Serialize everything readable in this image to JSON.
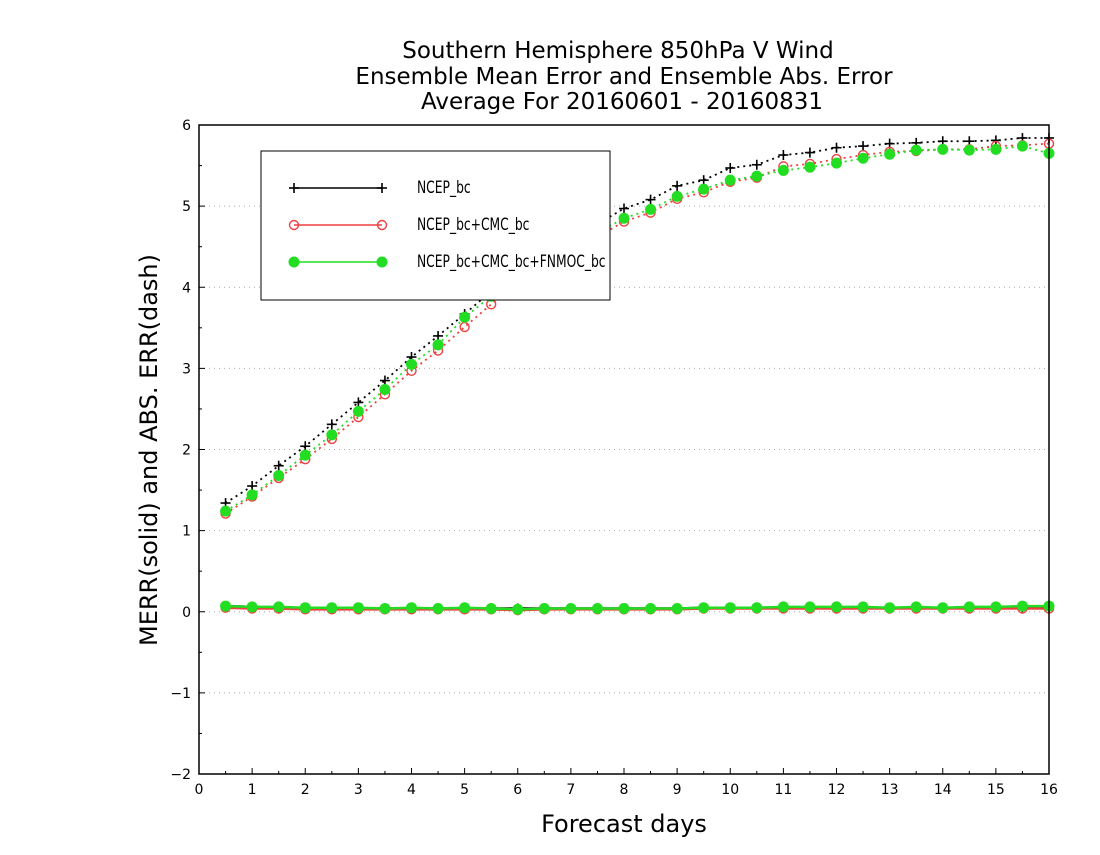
{
  "chart_data": {
    "type": "line",
    "title_lines": [
      "Southern Hemisphere 850hPa V Wind",
      "Ensemble Mean Error and Ensemble Abs. Error",
      "Average For 20160601 - 20160831"
    ],
    "xlabel": "Forecast days",
    "ylabel": "MERR(solid) and ABS. ERR(dash)",
    "xlim": [
      0,
      16
    ],
    "ylim": [
      -2,
      6
    ],
    "xticks": [
      "0",
      "1",
      "2",
      "3",
      "4",
      "5",
      "6",
      "7",
      "8",
      "9",
      "10",
      "11",
      "12",
      "13",
      "14",
      "15",
      "16"
    ],
    "yticks": [
      "−2",
      "−1",
      "0",
      "1",
      "2",
      "3",
      "4",
      "5",
      "6"
    ],
    "grid": "horizontal dotted",
    "legend_position": "top-left",
    "x": [
      0.5,
      1,
      1.5,
      2,
      2.5,
      3,
      3.5,
      4,
      4.5,
      5,
      5.5,
      6,
      6.5,
      7,
      7.5,
      8,
      8.5,
      9,
      9.5,
      10,
      10.5,
      11,
      11.5,
      12,
      12.5,
      13,
      13.5,
      14,
      14.5,
      15,
      15.5,
      16
    ],
    "series": [
      {
        "name": "NCEP_bc",
        "color": "#000000",
        "marker": "plus",
        "abs_err": [
          1.34,
          1.55,
          1.8,
          2.04,
          2.31,
          2.58,
          2.85,
          3.14,
          3.4,
          3.67,
          3.95,
          4.17,
          4.4,
          4.58,
          4.78,
          4.97,
          5.08,
          5.25,
          5.32,
          5.47,
          5.51,
          5.63,
          5.66,
          5.72,
          5.74,
          5.77,
          5.78,
          5.8,
          5.8,
          5.81,
          5.84,
          5.84
        ],
        "mean_err": [
          0.07,
          0.06,
          0.05,
          0.05,
          0.04,
          0.04,
          0.04,
          0.04,
          0.04,
          0.04,
          0.04,
          0.04,
          0.04,
          0.04,
          0.04,
          0.04,
          0.04,
          0.04,
          0.05,
          0.05,
          0.05,
          0.05,
          0.05,
          0.05,
          0.05,
          0.05,
          0.05,
          0.05,
          0.05,
          0.05,
          0.05,
          0.06
        ]
      },
      {
        "name": "NCEP_bc+CMC_bc",
        "color": "#ee4040",
        "marker": "open-circle",
        "abs_err": [
          1.21,
          1.42,
          1.65,
          1.88,
          2.13,
          2.4,
          2.68,
          2.97,
          3.22,
          3.51,
          3.79,
          4.05,
          4.27,
          4.44,
          4.62,
          4.81,
          4.92,
          5.09,
          5.17,
          5.3,
          5.35,
          5.49,
          5.52,
          5.58,
          5.63,
          5.67,
          5.68,
          5.7,
          5.7,
          5.74,
          5.75,
          5.77
        ],
        "mean_err": [
          0.05,
          0.04,
          0.04,
          0.03,
          0.03,
          0.03,
          0.03,
          0.03,
          0.03,
          0.03,
          0.03,
          0.02,
          0.03,
          0.03,
          0.03,
          0.03,
          0.03,
          0.03,
          0.04,
          0.04,
          0.04,
          0.04,
          0.04,
          0.04,
          0.04,
          0.04,
          0.04,
          0.04,
          0.04,
          0.04,
          0.04,
          0.04
        ]
      },
      {
        "name": "NCEP_bc+CMC_bc+FNMOC_bc",
        "color": "#22dd22",
        "marker": "filled-circle",
        "abs_err": [
          1.24,
          1.44,
          1.68,
          1.93,
          2.18,
          2.47,
          2.74,
          3.05,
          3.29,
          3.63,
          3.89,
          4.12,
          4.34,
          4.49,
          4.67,
          4.85,
          4.96,
          5.12,
          5.21,
          5.32,
          5.37,
          5.44,
          5.48,
          5.53,
          5.59,
          5.64,
          5.69,
          5.7,
          5.69,
          5.7,
          5.74,
          5.65
        ],
        "mean_err": [
          0.07,
          0.06,
          0.06,
          0.05,
          0.05,
          0.05,
          0.04,
          0.05,
          0.04,
          0.05,
          0.04,
          0.03,
          0.04,
          0.04,
          0.04,
          0.04,
          0.04,
          0.04,
          0.05,
          0.05,
          0.05,
          0.06,
          0.06,
          0.06,
          0.06,
          0.05,
          0.06,
          0.05,
          0.06,
          0.06,
          0.07,
          0.07
        ]
      }
    ]
  }
}
